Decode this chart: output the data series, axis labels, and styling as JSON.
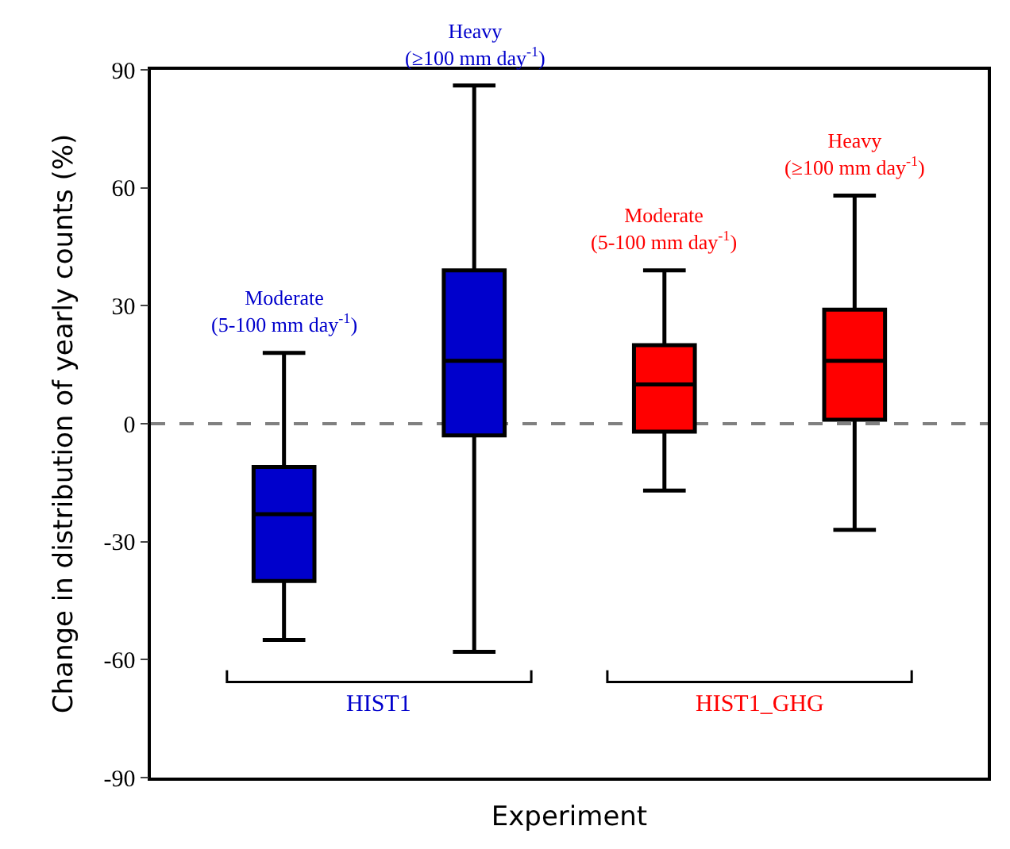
{
  "chart_data": {
    "type": "box",
    "xlabel": "Experiment",
    "ylabel": "Change in distribution of yearly counts (%)",
    "categories": [
      null,
      null,
      null,
      null
    ],
    "series": [
      {
        "name": "HIST1",
        "color": "#0000cc",
        "boxes": [
          {
            "low": -55,
            "q1": -40,
            "median": -23,
            "q3": -11,
            "high": 18
          },
          {
            "low": -58,
            "q1": -3,
            "median": 16,
            "q3": 39,
            "high": 86
          },
          null,
          null
        ]
      },
      {
        "name": "HIST1_GHG",
        "color": "#ff0000",
        "boxes": [
          null,
          null,
          {
            "low": -17,
            "q1": -2,
            "median": 10,
            "q3": 20,
            "high": 39
          },
          {
            "low": -27,
            "q1": 1,
            "median": 16,
            "q3": 29,
            "high": 58
          }
        ]
      }
    ],
    "annotations": [
      {
        "text": "Moderate\n(5-100 mm day$^{-1}$)",
        "y": 18
      },
      {
        "text": "Heavy\n(≥100 mm day$^{-1}$)",
        "y": 86
      },
      {
        "text": "Moderate\n(5-100 mm day$^{-1}$)",
        "y": 39
      },
      {
        "text": "Heavy\n(≥100 mm day$^{-1}$)",
        "y": 58
      }
    ],
    "ref_lines": [
      {
        "axis": "y",
        "value": 0,
        "color": "#808080",
        "line_style": "dashed"
      }
    ],
    "ylim": [
      -90,
      90
    ],
    "yticks": [
      -90,
      -60,
      -30,
      0,
      30,
      60,
      90
    ],
    "grid": false
  }
}
